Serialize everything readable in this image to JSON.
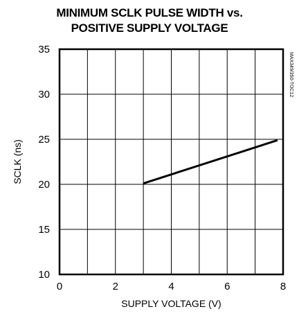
{
  "chart_data": {
    "type": "line",
    "title_line1": "MINIMUM SCLK PULSE WIDTH vs.",
    "title_line2": "POSITIVE SUPPLY VOLTAGE",
    "xlabel": "SUPPLY VOLTAGE (V)",
    "ylabel": "SCLK (ns)",
    "side_code": "MAX349/350-TOC12",
    "xlim": [
      0,
      8
    ],
    "ylim": [
      10,
      35
    ],
    "x_ticks": [
      0,
      2,
      4,
      6,
      8
    ],
    "y_ticks": [
      10,
      15,
      20,
      25,
      30,
      35
    ],
    "x_grid": [
      1,
      2,
      3,
      4,
      5,
      6,
      7
    ],
    "y_grid": [
      15,
      20,
      25,
      30
    ],
    "grid": true,
    "series": [
      {
        "x": [
          3.0,
          7.8
        ],
        "y": [
          20.1,
          24.9
        ],
        "color": "#000000"
      }
    ]
  }
}
